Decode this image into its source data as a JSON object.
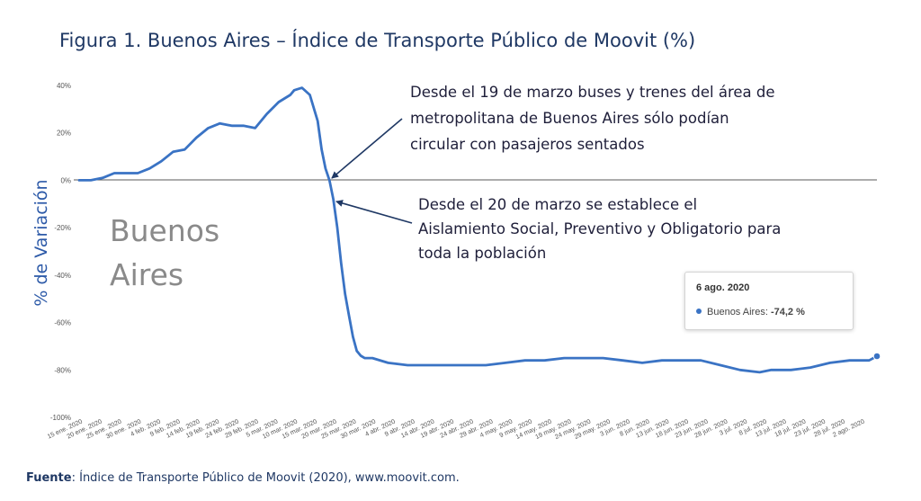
{
  "title": "Figura 1. Buenos Aires – Índice de Transporte Público de Moovit (%)",
  "watermark": {
    "line1": "Buenos",
    "line2": "Aires"
  },
  "annotations": {
    "a1": [
      "Desde el 19 de marzo buses y trenes del área de",
      "metropolitana de Buenos Aires sólo podían",
      "circular con pasajeros sentados"
    ],
    "a2": [
      "Desde el 20 de marzo se establece el",
      "Aislamiento Social, Preventivo y Obligatorio para",
      "toda la población"
    ]
  },
  "tooltip": {
    "date": "6 ago. 2020",
    "series_label": "Buenos Aires:",
    "value": "-74,2 %"
  },
  "source": {
    "label": "Fuente",
    "text": ": Índice de Transporte Público de Moovit (2020), www.moovit.com."
  },
  "colors": {
    "series": "#3a73c4",
    "title": "#1f3864",
    "axis_title": "#2d5aa8",
    "annotation_arrow": "#1f3864"
  },
  "chart_data": {
    "type": "line",
    "title": "Figura 1. Buenos Aires – Índice de Transporte Público de Moovit (%)",
    "xlabel": "",
    "ylabel": "% de Variación",
    "ylim": [
      -100,
      40
    ],
    "yticks": [
      40,
      20,
      0,
      -20,
      -40,
      -60,
      -80,
      -100
    ],
    "ytick_labels": [
      "40%",
      "20%",
      "0%",
      "-20%",
      "-40%",
      "-60%",
      "-80%",
      "-100%"
    ],
    "xtick_labels": [
      "15 ene. 2020",
      "20 ene. 2020",
      "25 ene. 2020",
      "30 ene. 2020",
      "4 feb. 2020",
      "9 feb. 2020",
      "14 feb. 2020",
      "19 feb. 2020",
      "24 feb. 2020",
      "29 feb. 2020",
      "5 mar. 2020",
      "10 mar. 2020",
      "15 mar. 2020",
      "20 mar. 2020",
      "25 mar. 2020",
      "30 mar. 2020",
      "4 abr. 2020",
      "9 abr. 2020",
      "14 abr. 2020",
      "19 abr. 2020",
      "24 abr. 2020",
      "29 abr. 2020",
      "4 may. 2020",
      "9 may. 2020",
      "14 may. 2020",
      "19 may. 2020",
      "24 may. 2020",
      "29 may. 2020",
      "3 jun. 2020",
      "8 jun. 2020",
      "13 jun. 2020",
      "18 jun. 2020",
      "23 jun. 2020",
      "28 jun. 2020",
      "3 jul. 2020",
      "8 jul. 2020",
      "13 jul. 2020",
      "18 jul. 2020",
      "23 jul. 2020",
      "28 jul. 2020",
      "2 ago. 2020"
    ],
    "grid": false,
    "zero_line": true,
    "series": [
      {
        "name": "Buenos Aires",
        "x": [
          "2020-01-15",
          "2020-01-18",
          "2020-01-21",
          "2020-01-24",
          "2020-01-27",
          "2020-01-30",
          "2020-02-02",
          "2020-02-05",
          "2020-02-08",
          "2020-02-11",
          "2020-02-14",
          "2020-02-17",
          "2020-02-20",
          "2020-02-23",
          "2020-02-26",
          "2020-02-29",
          "2020-03-03",
          "2020-03-06",
          "2020-03-09",
          "2020-03-10",
          "2020-03-12",
          "2020-03-14",
          "2020-03-16",
          "2020-03-17",
          "2020-03-18",
          "2020-03-19",
          "2020-03-20",
          "2020-03-21",
          "2020-03-22",
          "2020-03-23",
          "2020-03-24",
          "2020-03-25",
          "2020-03-26",
          "2020-03-27",
          "2020-03-28",
          "2020-03-30",
          "2020-04-03",
          "2020-04-08",
          "2020-04-13",
          "2020-04-18",
          "2020-04-23",
          "2020-04-28",
          "2020-05-03",
          "2020-05-08",
          "2020-05-13",
          "2020-05-18",
          "2020-05-23",
          "2020-05-28",
          "2020-06-02",
          "2020-06-07",
          "2020-06-12",
          "2020-06-17",
          "2020-06-22",
          "2020-06-27",
          "2020-07-02",
          "2020-07-07",
          "2020-07-10",
          "2020-07-15",
          "2020-07-20",
          "2020-07-25",
          "2020-07-30",
          "2020-08-04",
          "2020-08-06"
        ],
        "y": [
          0,
          0,
          1,
          3,
          3,
          3,
          5,
          8,
          12,
          13,
          18,
          22,
          24,
          23,
          23,
          22,
          28,
          33,
          36,
          38,
          39,
          36,
          25,
          13,
          5,
          0,
          -8,
          -20,
          -35,
          -48,
          -57,
          -66,
          -72,
          -74,
          -75,
          -75,
          -77,
          -78,
          -78,
          -78,
          -78,
          -78,
          -77,
          -76,
          -76,
          -75,
          -75,
          -75,
          -76,
          -77,
          -76,
          -76,
          -76,
          -78,
          -80,
          -81,
          -80,
          -80,
          -79,
          -77,
          -76,
          -76,
          -74.2
        ]
      }
    ]
  }
}
